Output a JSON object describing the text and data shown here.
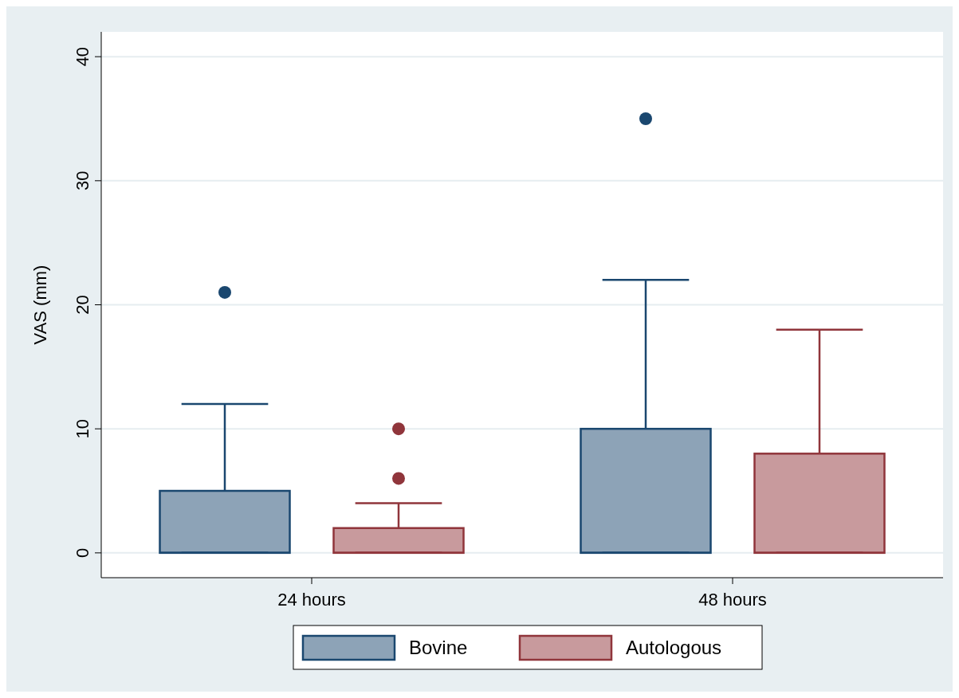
{
  "chart_data": {
    "type": "box",
    "ylabel": "VAS (mm)",
    "categories": [
      "24 hours",
      "48 hours"
    ],
    "ylim": [
      -2,
      42
    ],
    "yticks": [
      0,
      10,
      20,
      30,
      40
    ],
    "grid": "y",
    "legend": "bottom",
    "series": [
      {
        "name": "Bovine",
        "color": "#1a476f",
        "boxes": [
          {
            "low": 0,
            "q1": 0,
            "median": 0,
            "q3": 5,
            "high": 12,
            "outliers": [
              21
            ]
          },
          {
            "low": 0,
            "q1": 0,
            "median": 0,
            "q3": 10,
            "high": 22,
            "outliers": [
              35
            ]
          }
        ]
      },
      {
        "name": "Autologous",
        "color": "#90353b",
        "boxes": [
          {
            "low": 0,
            "q1": 0,
            "median": 0,
            "q3": 2,
            "high": 4,
            "outliers": [
              6,
              10
            ]
          },
          {
            "low": 0,
            "q1": 0,
            "median": 0,
            "q3": 8,
            "high": 18
          }
        ]
      }
    ]
  }
}
